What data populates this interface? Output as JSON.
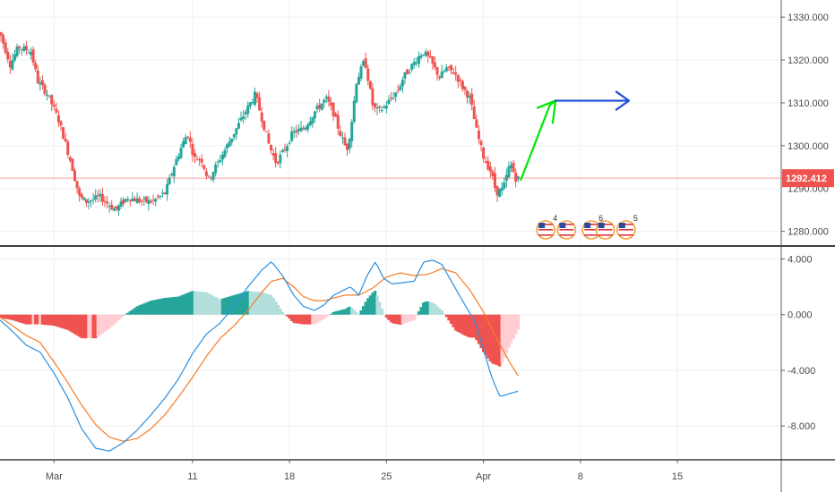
{
  "chart_data": [
    {
      "type": "candlestick",
      "ylim": [
        1277,
        1334
      ],
      "y_ticks": [
        "1280.000",
        "1290.000",
        "1300.000",
        "1310.000",
        "1320.000",
        "1330.000"
      ],
      "last_price_label": "1292.412",
      "last_price": 1292.412,
      "x_tick_labels": [
        {
          "label": "Mar",
          "day": 1
        },
        {
          "label": "11",
          "day": 11
        },
        {
          "label": "18",
          "day": 18
        },
        {
          "label": "25",
          "day": 25
        },
        {
          "label": "Apr",
          "day": 32
        },
        {
          "label": "8",
          "day": 39
        },
        {
          "label": "15",
          "day": 46
        }
      ],
      "xlim_days": [
        -2.9,
        53.5
      ],
      "grid": true,
      "colors": {
        "up": "#26a69a",
        "down": "#ef5350",
        "last_price": "#ef5350"
      },
      "keypoints": [
        [
          -3,
          1327
        ],
        [
          -2.7,
          1326
        ],
        [
          -2,
          1319
        ],
        [
          -1.4,
          1323
        ],
        [
          -0.5,
          1322
        ],
        [
          0,
          1315
        ],
        [
          0.7,
          1312
        ],
        [
          1.5,
          1306
        ],
        [
          2.4,
          1296
        ],
        [
          3,
          1288
        ],
        [
          3.5,
          1287
        ],
        [
          4.5,
          1288
        ],
        [
          5.6,
          1285
        ],
        [
          6.5,
          1288
        ],
        [
          7.5,
          1287
        ],
        [
          8.3,
          1287
        ],
        [
          9.2,
          1289
        ],
        [
          9.8,
          1295
        ],
        [
          10.4,
          1300
        ],
        [
          10.8,
          1303
        ],
        [
          11.3,
          1297
        ],
        [
          11.8,
          1297
        ],
        [
          12.3,
          1292
        ],
        [
          13,
          1296
        ],
        [
          14.5,
          1305
        ],
        [
          15,
          1308
        ],
        [
          15.7,
          1312
        ],
        [
          16.2,
          1306
        ],
        [
          16.7,
          1300
        ],
        [
          17.2,
          1296
        ],
        [
          17.8,
          1299
        ],
        [
          18.4,
          1303
        ],
        [
          19.2,
          1304
        ],
        [
          20,
          1308
        ],
        [
          20.8,
          1311
        ],
        [
          21.3,
          1308
        ],
        [
          21.8,
          1303
        ],
        [
          22.3,
          1299
        ],
        [
          22.6,
          1304
        ],
        [
          23,
          1315
        ],
        [
          23.6,
          1320
        ],
        [
          24.2,
          1309
        ],
        [
          24.6,
          1308
        ],
        [
          25,
          1309
        ],
        [
          26,
          1313
        ],
        [
          26.4,
          1316
        ],
        [
          27.3,
          1320
        ],
        [
          27.8,
          1322
        ],
        [
          28.3,
          1320
        ],
        [
          29,
          1316
        ],
        [
          29.5,
          1318
        ],
        [
          30.1,
          1317
        ],
        [
          30.6,
          1314
        ],
        [
          31.2,
          1311
        ],
        [
          31.7,
          1303
        ],
        [
          32.2,
          1297
        ],
        [
          32.7,
          1294
        ],
        [
          33.1,
          1289
        ],
        [
          33.6,
          1290
        ],
        [
          34.1,
          1296
        ],
        [
          34.5,
          1292.4
        ]
      ],
      "projection_arrows": [
        {
          "color": "#00e600",
          "points": [
            [
              34.7,
              1292
            ],
            [
              36.8,
              1309.5
            ],
            [
              37.2,
              1310.5
            ]
          ],
          "head": "up-right"
        },
        {
          "color": "#1f4fd6",
          "points": [
            [
              37.2,
              1310.5
            ],
            [
              42.5,
              1310.5
            ]
          ],
          "head": "right"
        }
      ],
      "event_markers": [
        {
          "day": 36.5,
          "count": "4"
        },
        {
          "day": 38.0,
          "count": ""
        },
        {
          "day": 39.8,
          "count": "6"
        },
        {
          "day": 40.8,
          "count": ""
        },
        {
          "day": 42.3,
          "count": "5"
        }
      ]
    },
    {
      "type": "macd",
      "ylim": [
        -10.3,
        4.8
      ],
      "y_ticks": [
        "4.000",
        "0.000",
        "-4.000",
        "-8.000"
      ],
      "colors": {
        "macd": "#2a8fe0",
        "signal": "#f57c29",
        "hist_up_strong": "#26a69a",
        "hist_up_weak": "#b2dfdb",
        "hist_down_strong": "#ef5350",
        "hist_down_weak": "#ffcdd2"
      },
      "macd_keypoints": [
        [
          -3,
          -0.3
        ],
        [
          -2,
          -1.2
        ],
        [
          -1,
          -2.2
        ],
        [
          0,
          -2.7
        ],
        [
          1,
          -4.2
        ],
        [
          2,
          -6.0
        ],
        [
          3,
          -8.2
        ],
        [
          4,
          -9.6
        ],
        [
          5,
          -9.8
        ],
        [
          6,
          -9.2
        ],
        [
          7,
          -8.3
        ],
        [
          8,
          -7.2
        ],
        [
          9,
          -6.0
        ],
        [
          10,
          -4.6
        ],
        [
          11,
          -2.8
        ],
        [
          12,
          -1.4
        ],
        [
          13,
          -0.6
        ],
        [
          14,
          0.6
        ],
        [
          15,
          2.0
        ],
        [
          16,
          3.2
        ],
        [
          16.7,
          3.8
        ],
        [
          17.5,
          2.8
        ],
        [
          18.3,
          1.4
        ],
        [
          19,
          0.6
        ],
        [
          19.8,
          0.3
        ],
        [
          20.5,
          0.7
        ],
        [
          21.2,
          1.4
        ],
        [
          21.8,
          1.7
        ],
        [
          22.4,
          2.0
        ],
        [
          23,
          1.4
        ],
        [
          23.6,
          2.8
        ],
        [
          24.2,
          3.8
        ],
        [
          24.8,
          2.6
        ],
        [
          25.4,
          2.2
        ],
        [
          26.2,
          2.3
        ],
        [
          27,
          2.4
        ],
        [
          27.7,
          3.8
        ],
        [
          28.4,
          3.9
        ],
        [
          29,
          3.6
        ],
        [
          29.8,
          2.2
        ],
        [
          30.6,
          0.8
        ],
        [
          31.4,
          -0.5
        ],
        [
          32,
          -2.5
        ],
        [
          32.6,
          -4.5
        ],
        [
          33.2,
          -5.9
        ],
        [
          33.8,
          -5.7
        ],
        [
          34.5,
          -5.5
        ]
      ],
      "signal_keypoints": [
        [
          -3,
          -0.1
        ],
        [
          -2,
          -0.8
        ],
        [
          -1,
          -1.5
        ],
        [
          0,
          -2.0
        ],
        [
          1,
          -3.4
        ],
        [
          2,
          -4.9
        ],
        [
          3,
          -6.5
        ],
        [
          4,
          -7.9
        ],
        [
          5,
          -8.8
        ],
        [
          6,
          -9.1
        ],
        [
          7,
          -8.9
        ],
        [
          8,
          -8.2
        ],
        [
          9,
          -7.2
        ],
        [
          10,
          -5.9
        ],
        [
          11,
          -4.5
        ],
        [
          12,
          -3.0
        ],
        [
          13,
          -1.7
        ],
        [
          14,
          -0.8
        ],
        [
          15,
          0.3
        ],
        [
          16,
          1.6
        ],
        [
          16.7,
          2.4
        ],
        [
          17.5,
          2.6
        ],
        [
          18.3,
          2.0
        ],
        [
          19,
          1.3
        ],
        [
          19.8,
          1.0
        ],
        [
          20.5,
          1.0
        ],
        [
          21.2,
          1.2
        ],
        [
          22,
          1.4
        ],
        [
          23,
          1.4
        ],
        [
          24,
          1.9
        ],
        [
          25,
          2.7
        ],
        [
          26,
          3.0
        ],
        [
          27,
          2.8
        ],
        [
          28,
          2.9
        ],
        [
          29,
          3.3
        ],
        [
          30,
          3.0
        ],
        [
          31,
          1.8
        ],
        [
          32,
          0.2
        ],
        [
          33,
          -1.8
        ],
        [
          34,
          -3.6
        ],
        [
          34.5,
          -4.4
        ]
      ]
    }
  ]
}
